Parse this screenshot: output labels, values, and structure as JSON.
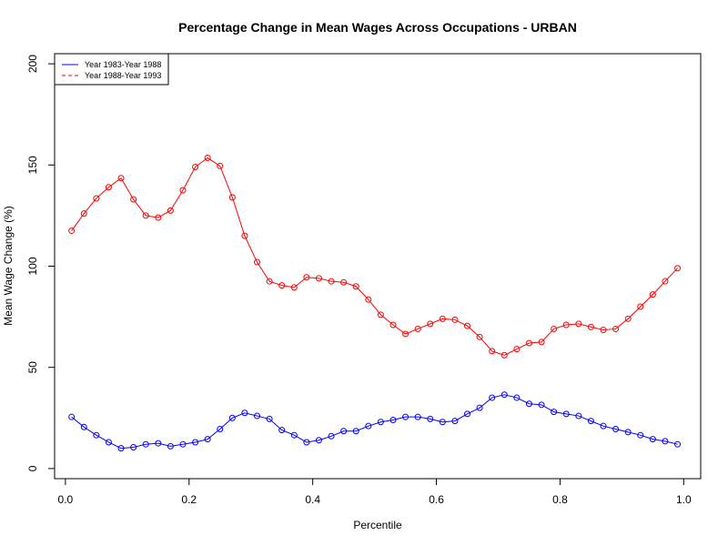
{
  "chart_data": {
    "type": "line",
    "title": "Percentage Change in Mean Wages  Across Occupations - URBAN",
    "xlabel": "Percentile",
    "ylabel": "Mean Wage Change (%)",
    "xlim": [
      0,
      1
    ],
    "ylim": [
      -5,
      205
    ],
    "xticks": [
      0,
      0.2,
      0.4,
      0.6,
      0.8,
      1
    ],
    "xtick_labels": [
      "0.0",
      "0.2",
      "0.4",
      "0.6",
      "0.8",
      "1.0"
    ],
    "yticks": [
      0,
      50,
      100,
      150,
      200
    ],
    "ytick_labels": [
      "0",
      "50",
      "100",
      "150",
      "200"
    ],
    "grid": false,
    "legend_position": "top-left",
    "x": [
      0.01,
      0.03,
      0.05,
      0.07,
      0.09,
      0.11,
      0.13,
      0.15,
      0.17,
      0.19,
      0.21,
      0.23,
      0.25,
      0.27,
      0.29,
      0.31,
      0.33,
      0.35,
      0.37,
      0.39,
      0.41,
      0.43,
      0.45,
      0.47,
      0.49,
      0.51,
      0.53,
      0.55,
      0.57,
      0.59,
      0.61,
      0.63,
      0.65,
      0.67,
      0.69,
      0.71,
      0.73,
      0.75,
      0.77,
      0.79,
      0.81,
      0.83,
      0.85,
      0.87,
      0.89,
      0.91,
      0.93,
      0.95,
      0.97,
      0.99
    ],
    "series": [
      {
        "name": "Year 1983-Year 1988",
        "color": "#0000ff",
        "line_style": "solid",
        "values": [
          25.5,
          20.5,
          16.5,
          13,
          10,
          10.5,
          12,
          12.5,
          11,
          12,
          13,
          14.5,
          19.5,
          25,
          27.5,
          26,
          24.5,
          19,
          16.5,
          13,
          14,
          16,
          18.5,
          18.5,
          21,
          23,
          24,
          25.5,
          25.5,
          24.5,
          23,
          23.5,
          27,
          30,
          35,
          36.5,
          35,
          32,
          31.5,
          28,
          27,
          26,
          23.5,
          21,
          19.5,
          18,
          16.5,
          14.5,
          13.5,
          12
        ]
      },
      {
        "name": "Year 1988-Year 1993",
        "color": "#ff0000",
        "line_style": "dashed",
        "values": [
          117.5,
          126,
          133.5,
          139,
          143.5,
          133,
          125,
          124,
          127.5,
          137.5,
          149,
          153.5,
          149.5,
          134,
          115,
          102,
          92.5,
          90.5,
          89.5,
          94.5,
          94,
          92.5,
          92,
          90,
          83.5,
          76,
          71,
          66.5,
          69,
          71.5,
          74,
          73.5,
          70.5,
          65,
          58,
          56,
          59,
          62,
          62.5,
          69,
          71,
          71.5,
          70,
          68.5,
          69,
          74,
          80,
          86,
          92.5,
          99
        ]
      }
    ]
  }
}
